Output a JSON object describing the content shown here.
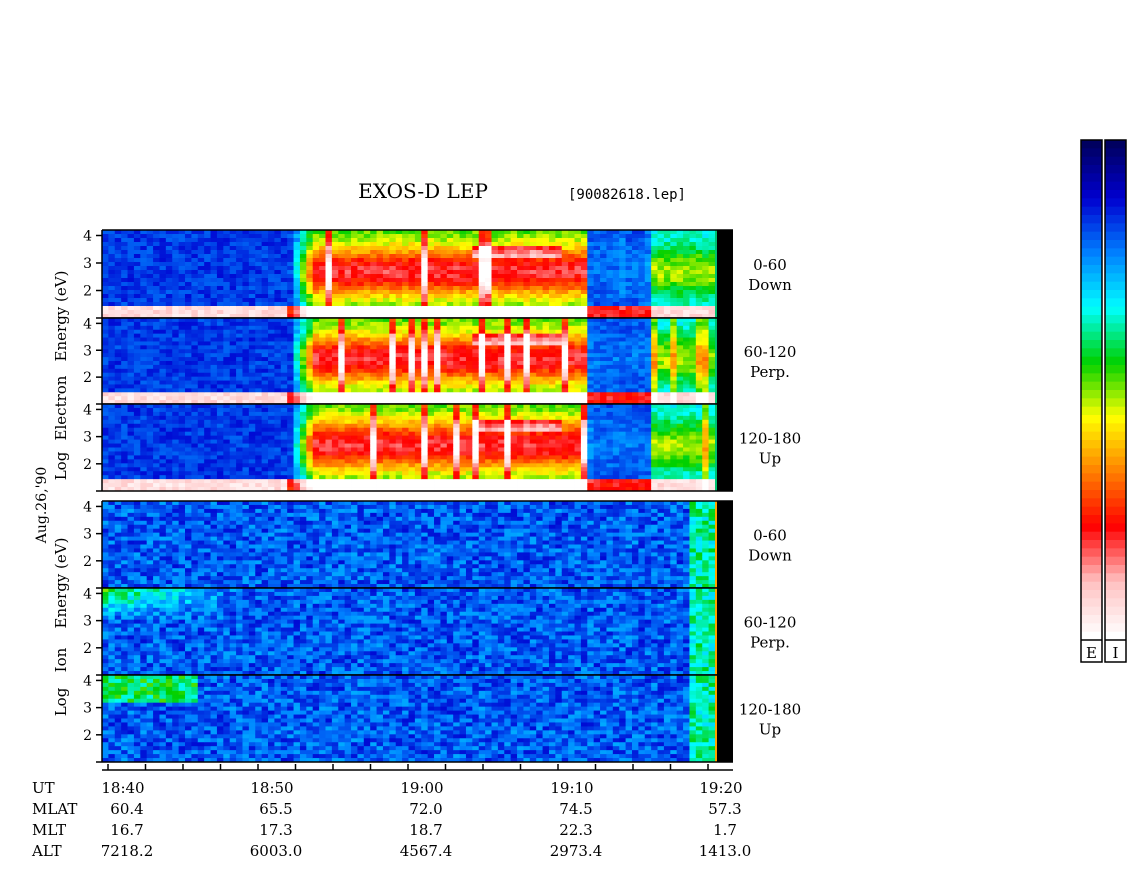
{
  "chart_data": {
    "type": "heatmap",
    "title": "EXOS-D LEP",
    "file_label": "[90082618.lep]",
    "date_label": "Aug.26,'90",
    "electron_ylabel": [
      "Log",
      "Electron",
      "Energy (eV)"
    ],
    "ion_ylabel": [
      "Log",
      "Ion",
      "Energy (eV)"
    ],
    "ytick_labels": [
      "4",
      "3",
      "2"
    ],
    "ylim": [
      1,
      4.2
    ],
    "xlim_minutes": [
      0,
      41.5
    ],
    "panels": [
      {
        "species": "Electron",
        "pitch": "0-60",
        "direction": "Down"
      },
      {
        "species": "Electron",
        "pitch": "60-120",
        "direction": "Perp."
      },
      {
        "species": "Electron",
        "pitch": "120-180",
        "direction": "Up"
      },
      {
        "species": "Ion",
        "pitch": "0-60",
        "direction": "Down"
      },
      {
        "species": "Ion",
        "pitch": "60-120",
        "direction": "Perp."
      },
      {
        "species": "Ion",
        "pitch": "120-180",
        "direction": "Up"
      }
    ],
    "colorbars": [
      {
        "label": "E"
      },
      {
        "label": "I"
      }
    ],
    "colormap": [
      "#ffffff",
      "#ffc0c0",
      "#ff0000",
      "#ff8000",
      "#ffff00",
      "#00d000",
      "#00ffff",
      "#0080ff",
      "#0000d0",
      "#000060"
    ],
    "xaxis": {
      "row_labels": [
        "UT",
        "MLAT",
        "MLT",
        "ALT"
      ],
      "ticks": [
        {
          "UT": "18:40",
          "MLAT": "60.4",
          "MLT": "16.7",
          "ALT": "7218.2"
        },
        {
          "UT": "18:50",
          "MLAT": "65.5",
          "MLT": "17.3",
          "ALT": "6003.0"
        },
        {
          "UT": "19:00",
          "MLAT": "72.0",
          "MLT": "18.7",
          "ALT": "4567.4"
        },
        {
          "UT": "19:10",
          "MLAT": "74.5",
          "MLT": "22.3",
          "ALT": "2973.4"
        },
        {
          "UT": "19:20",
          "MLAT": "57.3",
          "MLT": "1.7",
          "ALT": "1413.0"
        }
      ]
    }
  }
}
